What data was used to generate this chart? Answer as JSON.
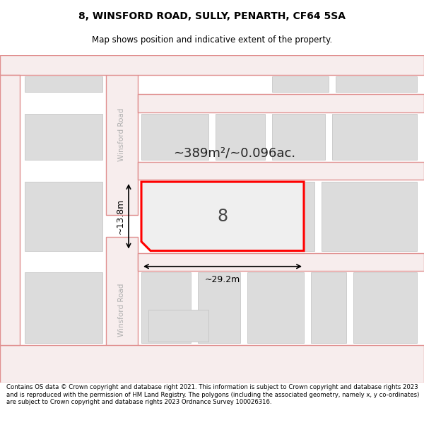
{
  "title_line1": "8, WINSFORD ROAD, SULLY, PENARTH, CF64 5SA",
  "title_line2": "Map shows position and indicative extent of the property.",
  "footer_text": "Contains OS data © Crown copyright and database right 2021. This information is subject to Crown copyright and database rights 2023 and is reproduced with the permission of HM Land Registry. The polygons (including the associated geometry, namely x, y co-ordinates) are subject to Crown copyright and database rights 2023 Ordnance Survey 100026316.",
  "map_bg": "#f0eeee",
  "road_color": "#e09090",
  "road_fill": "#f7eded",
  "block_fill": "#dcdcdc",
  "block_edge": "#c0c0c0",
  "highlight_color": "#ff0000",
  "highlight_fill": "#efefef",
  "road_label": "Winsford Road",
  "area_label": "~389m²/~0.096ac.",
  "plot_number": "8",
  "dim_width": "~29.2m",
  "dim_height": "~13.8m"
}
